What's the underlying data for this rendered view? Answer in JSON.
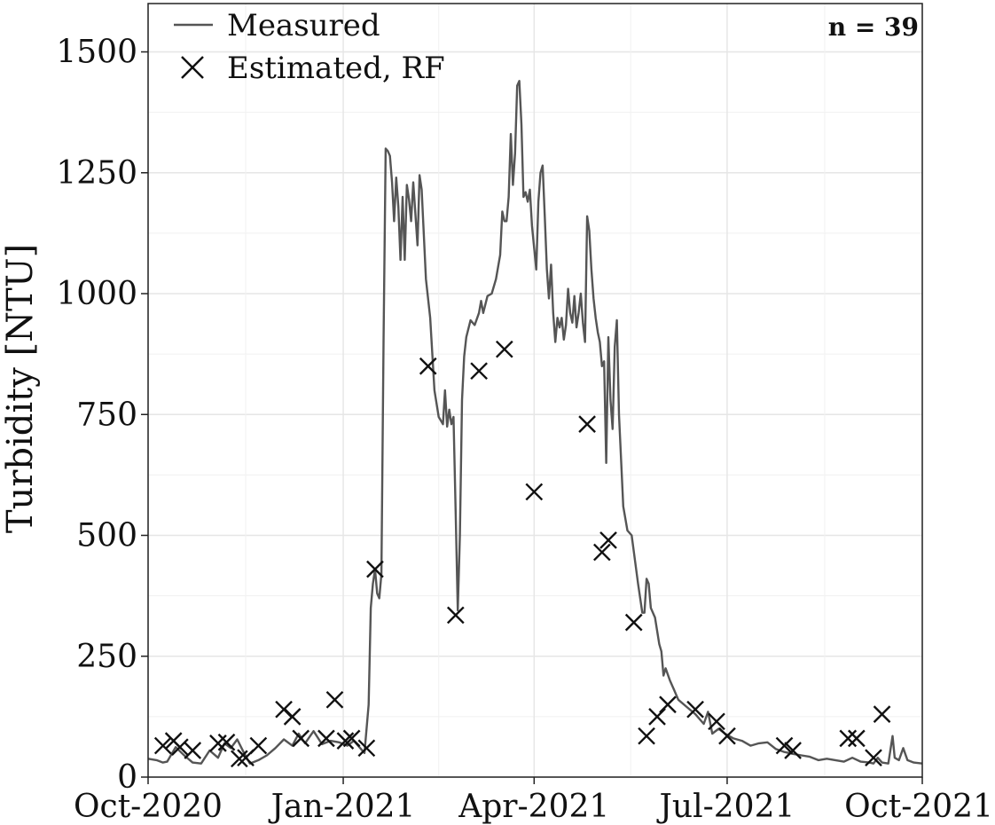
{
  "chart_data": {
    "type": "line",
    "title": "",
    "xlabel": "",
    "ylabel": "Turbidity [NTU]",
    "ylim": [
      0,
      1600
    ],
    "xlim": [
      "2020-10-01",
      "2021-10-01"
    ],
    "grid": true,
    "legend_position": "top-left",
    "annotation": "n = 39",
    "x_ticks": [
      {
        "date": "2020-10-01",
        "label": "Oct-2020"
      },
      {
        "date": "2021-01-01",
        "label": "Jan-2021"
      },
      {
        "date": "2021-04-01",
        "label": "Apr-2021"
      },
      {
        "date": "2021-07-01",
        "label": "Jul-2021"
      },
      {
        "date": "2021-10-01",
        "label": "Oct-2021"
      }
    ],
    "y_ticks": [
      {
        "value": 0,
        "label": "0"
      },
      {
        "value": 250,
        "label": "250"
      },
      {
        "value": 500,
        "label": "500"
      },
      {
        "value": 750,
        "label": "750"
      },
      {
        "value": 1000,
        "label": "1000"
      },
      {
        "value": 1250,
        "label": "1250"
      },
      {
        "value": 1500,
        "label": "1500"
      }
    ],
    "colors": {
      "measured": "#555555",
      "estimated": "#111111",
      "grid": "#e6e6e6",
      "axis": "#222222"
    },
    "series": [
      {
        "name": "Measured",
        "style": "line",
        "points": [
          [
            "2020-10-01",
            38
          ],
          [
            "2020-10-05",
            35
          ],
          [
            "2020-10-08",
            30
          ],
          [
            "2020-10-10",
            32
          ],
          [
            "2020-10-14",
            62
          ],
          [
            "2020-10-18",
            45
          ],
          [
            "2020-10-22",
            30
          ],
          [
            "2020-10-26",
            28
          ],
          [
            "2020-10-30",
            55
          ],
          [
            "2020-11-03",
            40
          ],
          [
            "2020-11-06",
            70
          ],
          [
            "2020-11-09",
            60
          ],
          [
            "2020-11-12",
            78
          ],
          [
            "2020-11-15",
            52
          ],
          [
            "2020-11-18",
            28
          ],
          [
            "2020-11-22",
            35
          ],
          [
            "2020-11-26",
            45
          ],
          [
            "2020-11-30",
            60
          ],
          [
            "2020-12-04",
            78
          ],
          [
            "2020-12-08",
            65
          ],
          [
            "2020-12-11",
            90
          ],
          [
            "2020-12-14",
            70
          ],
          [
            "2020-12-18",
            95
          ],
          [
            "2020-12-22",
            68
          ],
          [
            "2020-12-26",
            75
          ],
          [
            "2020-12-30",
            72
          ],
          [
            "2021-01-03",
            65
          ],
          [
            "2021-01-06",
            75
          ],
          [
            "2021-01-09",
            60
          ],
          [
            "2021-01-11",
            50
          ],
          [
            "2021-01-13",
            150
          ],
          [
            "2021-01-14",
            350
          ],
          [
            "2021-01-15",
            400
          ],
          [
            "2021-01-16",
            430
          ],
          [
            "2021-01-17",
            380
          ],
          [
            "2021-01-18",
            370
          ],
          [
            "2021-01-19",
            420
          ],
          [
            "2021-01-20",
            900
          ],
          [
            "2021-01-21",
            1300
          ],
          [
            "2021-01-22",
            1295
          ],
          [
            "2021-01-23",
            1285
          ],
          [
            "2021-01-24",
            1230
          ],
          [
            "2021-01-25",
            1150
          ],
          [
            "2021-01-26",
            1240
          ],
          [
            "2021-01-27",
            1180
          ],
          [
            "2021-01-28",
            1070
          ],
          [
            "2021-01-29",
            1200
          ],
          [
            "2021-01-30",
            1070
          ],
          [
            "2021-01-31",
            1225
          ],
          [
            "2021-02-01",
            1195
          ],
          [
            "2021-02-02",
            1150
          ],
          [
            "2021-02-03",
            1230
          ],
          [
            "2021-02-05",
            1100
          ],
          [
            "2021-02-06",
            1245
          ],
          [
            "2021-02-07",
            1215
          ],
          [
            "2021-02-09",
            1030
          ],
          [
            "2021-02-11",
            950
          ],
          [
            "2021-02-13",
            800
          ],
          [
            "2021-02-15",
            745
          ],
          [
            "2021-02-17",
            730
          ],
          [
            "2021-02-18",
            800
          ],
          [
            "2021-02-19",
            725
          ],
          [
            "2021-02-20",
            760
          ],
          [
            "2021-02-21",
            730
          ],
          [
            "2021-02-22",
            745
          ],
          [
            "2021-02-23",
            550
          ],
          [
            "2021-02-24",
            345
          ],
          [
            "2021-02-25",
            500
          ],
          [
            "2021-02-26",
            780
          ],
          [
            "2021-02-27",
            870
          ],
          [
            "2021-02-28",
            910
          ],
          [
            "2021-03-02",
            945
          ],
          [
            "2021-03-04",
            935
          ],
          [
            "2021-03-06",
            960
          ],
          [
            "2021-03-07",
            985
          ],
          [
            "2021-03-08",
            960
          ],
          [
            "2021-03-10",
            995
          ],
          [
            "2021-03-12",
            1000
          ],
          [
            "2021-03-14",
            1030
          ],
          [
            "2021-03-16",
            1080
          ],
          [
            "2021-03-17",
            1170
          ],
          [
            "2021-03-18",
            1150
          ],
          [
            "2021-03-19",
            1150
          ],
          [
            "2021-03-20",
            1200
          ],
          [
            "2021-03-21",
            1330
          ],
          [
            "2021-03-22",
            1225
          ],
          [
            "2021-03-23",
            1290
          ],
          [
            "2021-03-24",
            1430
          ],
          [
            "2021-03-25",
            1440
          ],
          [
            "2021-03-26",
            1350
          ],
          [
            "2021-03-27",
            1200
          ],
          [
            "2021-03-28",
            1210
          ],
          [
            "2021-03-29",
            1190
          ],
          [
            "2021-03-30",
            1215
          ],
          [
            "2021-03-31",
            1140
          ],
          [
            "2021-04-02",
            1050
          ],
          [
            "2021-04-03",
            1190
          ],
          [
            "2021-04-04",
            1250
          ],
          [
            "2021-04-05",
            1265
          ],
          [
            "2021-04-06",
            1160
          ],
          [
            "2021-04-07",
            1050
          ],
          [
            "2021-04-08",
            990
          ],
          [
            "2021-04-09",
            1060
          ],
          [
            "2021-04-10",
            960
          ],
          [
            "2021-04-11",
            900
          ],
          [
            "2021-04-12",
            950
          ],
          [
            "2021-04-13",
            930
          ],
          [
            "2021-04-14",
            950
          ],
          [
            "2021-04-15",
            905
          ],
          [
            "2021-04-16",
            935
          ],
          [
            "2021-04-17",
            1010
          ],
          [
            "2021-04-18",
            960
          ],
          [
            "2021-04-19",
            940
          ],
          [
            "2021-04-20",
            995
          ],
          [
            "2021-04-21",
            930
          ],
          [
            "2021-04-22",
            960
          ],
          [
            "2021-04-23",
            1000
          ],
          [
            "2021-04-24",
            940
          ],
          [
            "2021-04-25",
            900
          ],
          [
            "2021-04-26",
            1160
          ],
          [
            "2021-04-27",
            1130
          ],
          [
            "2021-04-28",
            1050
          ],
          [
            "2021-04-29",
            990
          ],
          [
            "2021-04-30",
            950
          ],
          [
            "2021-05-01",
            920
          ],
          [
            "2021-05-02",
            900
          ],
          [
            "2021-05-03",
            850
          ],
          [
            "2021-05-04",
            860
          ],
          [
            "2021-05-05",
            650
          ],
          [
            "2021-05-06",
            910
          ],
          [
            "2021-05-07",
            780
          ],
          [
            "2021-05-08",
            720
          ],
          [
            "2021-05-09",
            890
          ],
          [
            "2021-05-10",
            945
          ],
          [
            "2021-05-11",
            750
          ],
          [
            "2021-05-13",
            560
          ],
          [
            "2021-05-15",
            510
          ],
          [
            "2021-05-17",
            500
          ],
          [
            "2021-05-20",
            400
          ],
          [
            "2021-05-22",
            340
          ],
          [
            "2021-05-23",
            340
          ],
          [
            "2021-05-24",
            410
          ],
          [
            "2021-05-25",
            400
          ],
          [
            "2021-05-26",
            350
          ],
          [
            "2021-05-28",
            330
          ],
          [
            "2021-05-30",
            275
          ],
          [
            "2021-05-31",
            260
          ],
          [
            "2021-06-01",
            210
          ],
          [
            "2021-06-02",
            225
          ],
          [
            "2021-06-04",
            200
          ],
          [
            "2021-06-06",
            180
          ],
          [
            "2021-06-08",
            160
          ],
          [
            "2021-06-12",
            145
          ],
          [
            "2021-06-16",
            130
          ],
          [
            "2021-06-20",
            110
          ],
          [
            "2021-06-22",
            135
          ],
          [
            "2021-06-24",
            90
          ],
          [
            "2021-06-27",
            100
          ],
          [
            "2021-06-30",
            90
          ],
          [
            "2021-07-04",
            80
          ],
          [
            "2021-07-08",
            75
          ],
          [
            "2021-07-12",
            65
          ],
          [
            "2021-07-16",
            70
          ],
          [
            "2021-07-20",
            72
          ],
          [
            "2021-07-24",
            58
          ],
          [
            "2021-07-28",
            52
          ],
          [
            "2021-08-01",
            48
          ],
          [
            "2021-08-05",
            45
          ],
          [
            "2021-08-09",
            42
          ],
          [
            "2021-08-13",
            35
          ],
          [
            "2021-08-17",
            38
          ],
          [
            "2021-08-21",
            35
          ],
          [
            "2021-08-25",
            32
          ],
          [
            "2021-08-29",
            40
          ],
          [
            "2021-09-02",
            32
          ],
          [
            "2021-09-06",
            30
          ],
          [
            "2021-09-08",
            28
          ],
          [
            "2021-09-10",
            40
          ],
          [
            "2021-09-12",
            30
          ],
          [
            "2021-09-15",
            28
          ],
          [
            "2021-09-17",
            85
          ],
          [
            "2021-09-18",
            40
          ],
          [
            "2021-09-20",
            35
          ],
          [
            "2021-09-22",
            60
          ],
          [
            "2021-09-24",
            35
          ],
          [
            "2021-09-27",
            30
          ],
          [
            "2021-10-01",
            28
          ]
        ]
      },
      {
        "name": "Estimated, RF",
        "style": "marker-x",
        "points": [
          [
            "2020-10-08",
            65
          ],
          [
            "2020-10-13",
            75
          ],
          [
            "2020-10-16",
            62
          ],
          [
            "2020-10-22",
            55
          ],
          [
            "2020-11-03",
            70
          ],
          [
            "2020-11-07",
            72
          ],
          [
            "2020-11-13",
            38
          ],
          [
            "2020-11-16",
            40
          ],
          [
            "2020-11-22",
            65
          ],
          [
            "2020-12-04",
            140
          ],
          [
            "2020-12-08",
            125
          ],
          [
            "2020-12-12",
            80
          ],
          [
            "2020-12-24",
            80
          ],
          [
            "2020-12-28",
            160
          ],
          [
            "2021-01-02",
            75
          ],
          [
            "2021-01-05",
            80
          ],
          [
            "2021-01-12",
            60
          ],
          [
            "2021-01-16",
            430
          ],
          [
            "2021-02-10",
            850
          ],
          [
            "2021-02-23",
            335
          ],
          [
            "2021-03-06",
            840
          ],
          [
            "2021-03-18",
            885
          ],
          [
            "2021-04-01",
            590
          ],
          [
            "2021-04-26",
            730
          ],
          [
            "2021-05-03",
            465
          ],
          [
            "2021-05-06",
            490
          ],
          [
            "2021-05-18",
            320
          ],
          [
            "2021-05-24",
            85
          ],
          [
            "2021-05-29",
            125
          ],
          [
            "2021-06-03",
            150
          ],
          [
            "2021-06-16",
            140
          ],
          [
            "2021-06-26",
            115
          ],
          [
            "2021-07-01",
            85
          ],
          [
            "2021-07-28",
            65
          ],
          [
            "2021-08-01",
            55
          ],
          [
            "2021-08-27",
            80
          ],
          [
            "2021-08-31",
            80
          ],
          [
            "2021-09-08",
            40
          ],
          [
            "2021-09-12",
            130
          ]
        ]
      }
    ]
  }
}
